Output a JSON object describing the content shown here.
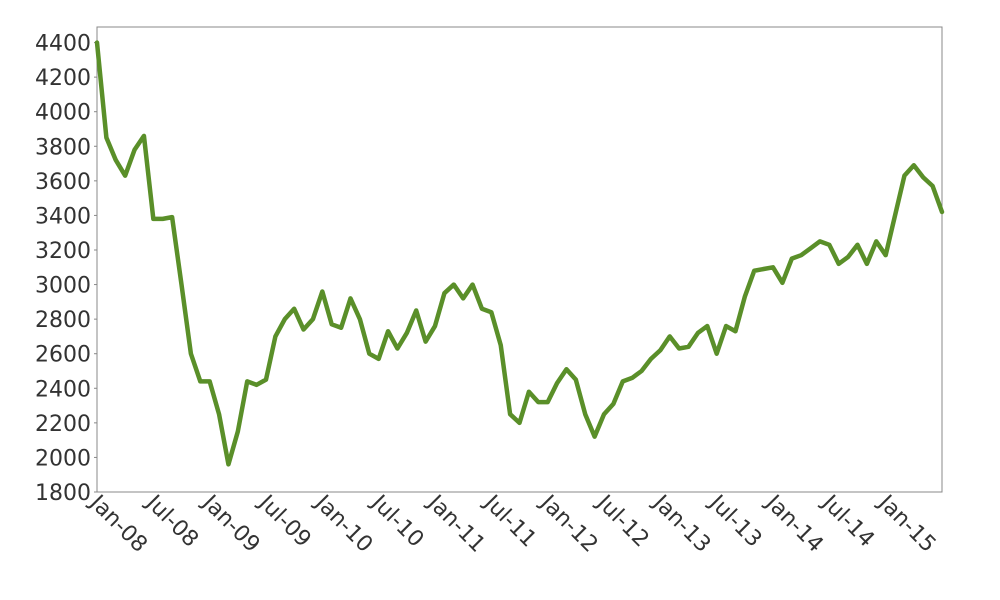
{
  "chart_data": {
    "type": "line",
    "categories": [
      "Jan-08",
      null,
      null,
      null,
      null,
      null,
      "Jul-08",
      null,
      null,
      null,
      null,
      null,
      "Jan-09",
      null,
      null,
      null,
      null,
      null,
      "Jul-09",
      null,
      null,
      null,
      null,
      null,
      "Jan-10",
      null,
      null,
      null,
      null,
      null,
      "Jul-10",
      null,
      null,
      null,
      null,
      null,
      "Jan-11",
      null,
      null,
      null,
      null,
      null,
      "Jul-11",
      null,
      null,
      null,
      null,
      null,
      "Jan-12",
      null,
      null,
      null,
      null,
      null,
      "Jul-12",
      null,
      null,
      null,
      null,
      null,
      "Jan-13",
      null,
      null,
      null,
      null,
      null,
      "Jul-13",
      null,
      null,
      null,
      null,
      null,
      "Jan-14",
      null,
      null,
      null,
      null,
      null,
      "Jul-14",
      null,
      null,
      null,
      null,
      null,
      "Jan-15",
      null,
      null,
      null,
      null,
      null,
      null
    ],
    "series": [
      {
        "color": "#5a8f29",
        "values": [
          4400,
          3850,
          3720,
          3630,
          3780,
          3860,
          3380,
          3380,
          3390,
          3000,
          2600,
          2440,
          2440,
          2250,
          1960,
          2150,
          2440,
          2420,
          2450,
          2700,
          2800,
          2860,
          2740,
          2800,
          2960,
          2770,
          2750,
          2920,
          2800,
          2600,
          2570,
          2730,
          2630,
          2720,
          2850,
          2670,
          2760,
          2950,
          3000,
          2920,
          3000,
          2860,
          2840,
          2650,
          2250,
          2200,
          2380,
          2320,
          2320,
          2430,
          2510,
          2450,
          2250,
          2120,
          2250,
          2310,
          2440,
          2460,
          2500,
          2570,
          2620,
          2700,
          2630,
          2640,
          2720,
          2760,
          2600,
          2760,
          2730,
          2930,
          3080,
          3090,
          3100,
          3010,
          3150,
          3170,
          3210,
          3250,
          3230,
          3120,
          3160,
          3230,
          3120,
          3250,
          3170,
          3400,
          3630,
          3690,
          3620,
          3570,
          3420
        ]
      }
    ],
    "ylim": [
      1800,
      4490
    ],
    "yticks": [
      1800,
      2000,
      2200,
      2400,
      2600,
      2800,
      3000,
      3200,
      3400,
      3600,
      3800,
      4000,
      4200,
      4400
    ],
    "grid": false
  }
}
